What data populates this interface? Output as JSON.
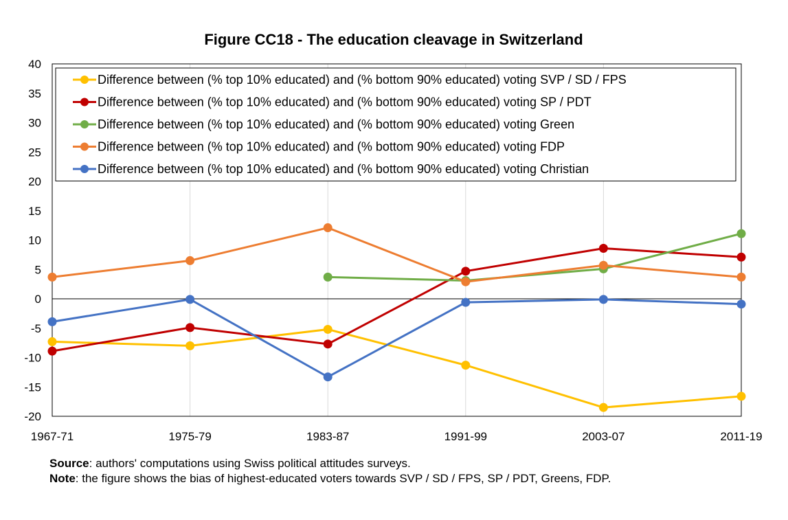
{
  "chart_data": {
    "type": "line",
    "title": "Figure CC18 - The education cleavage in Switzerland",
    "xlabel": "",
    "ylabel": "",
    "categories": [
      "1967-71",
      "1975-79",
      "1983-87",
      "1991-99",
      "2003-07",
      "2011-19"
    ],
    "ylim": [
      -20,
      40
    ],
    "yticks": [
      40,
      35,
      30,
      25,
      20,
      15,
      10,
      5,
      0,
      -5,
      -10,
      -15,
      -20
    ],
    "grid": "vertical",
    "legend_position": "top",
    "series": [
      {
        "name": "Difference between (% top 10% educated) and (% bottom 90% educated) voting SVP / SD / FPS",
        "color": "#FFC000",
        "values": [
          -7.3,
          -8.0,
          -5.2,
          -11.3,
          -18.5,
          -16.6
        ]
      },
      {
        "name": "Difference between (% top 10% educated) and (% bottom 90% educated) voting SP / PDT",
        "color": "#C00000",
        "values": [
          -8.9,
          -4.9,
          -7.7,
          4.7,
          8.6,
          7.1
        ]
      },
      {
        "name": "Difference between (% top 10% educated) and (% bottom 90% educated) voting Green",
        "color": "#70AD47",
        "values": [
          null,
          null,
          3.7,
          3.1,
          5.1,
          11.1
        ]
      },
      {
        "name": "Difference between (% top 10% educated) and (% bottom 90% educated) voting FDP",
        "color": "#ED7D31",
        "values": [
          3.7,
          6.5,
          12.1,
          2.9,
          5.7,
          3.7
        ]
      },
      {
        "name": "Difference between (% top 10% educated) and (% bottom 90% educated) voting Christian",
        "color": "#4472C4",
        "values": [
          -3.9,
          -0.1,
          -13.3,
          -0.6,
          -0.1,
          -0.9
        ]
      }
    ]
  },
  "notes": {
    "source_label": "Source",
    "source_text": ": authors' computations using Swiss political attitudes surveys.",
    "note_label": "Note",
    "note_text": ": the figure shows the bias of highest-educated voters towards SVP / SD / FPS, SP / PDT, Greens, FDP."
  }
}
